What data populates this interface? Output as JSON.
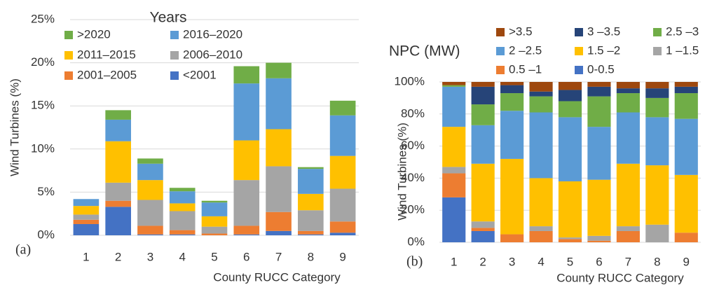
{
  "chart_data": [
    {
      "type": "bar",
      "stacked": true,
      "title": "Years",
      "xlabel": "County RUCC Category",
      "ylabel": "Wind Turbines (%)",
      "annotation": "(a)",
      "categories": [
        "1",
        "2",
        "3",
        "4",
        "5",
        "6",
        "7",
        "8",
        "9"
      ],
      "ylim": [
        0,
        25
      ],
      "yticks": [
        {
          "value": 0,
          "label": "0%"
        },
        {
          "value": 5,
          "label": "5%"
        },
        {
          "value": 10,
          "label": "10%"
        },
        {
          "value": 15,
          "label": "15%"
        },
        {
          "value": 20,
          "label": "20%"
        },
        {
          "value": 25,
          "label": "25%"
        }
      ],
      "grid": true,
      "series": [
        {
          "name": "<2001",
          "color": "#4472c4",
          "values": [
            1.3,
            3.3,
            0.1,
            0.1,
            0,
            0.1,
            0.5,
            0.1,
            0.3
          ]
        },
        {
          "name": "2001–2005",
          "color": "#ed7d31",
          "values": [
            0.5,
            0.7,
            1.0,
            0.5,
            0.2,
            1.0,
            2.2,
            0.4,
            1.3
          ]
        },
        {
          "name": "2006–2010",
          "color": "#a5a5a5",
          "values": [
            0.6,
            2.1,
            3.0,
            2.2,
            0.8,
            5.3,
            5.3,
            2.4,
            3.8
          ]
        },
        {
          "name": "2011–2015",
          "color": "#ffc000",
          "values": [
            1.0,
            4.8,
            2.3,
            0.9,
            1.2,
            4.6,
            4.3,
            1.9,
            3.8
          ]
        },
        {
          "name": "2016–2020",
          "color": "#5b9bd5",
          "values": [
            0.8,
            2.5,
            1.9,
            1.4,
            1.6,
            6.6,
            5.9,
            2.9,
            4.7
          ]
        },
        {
          "name": ">2020",
          "color": "#70ad47",
          "values": [
            0,
            1.1,
            0.6,
            0.4,
            0.2,
            2.0,
            1.8,
            0.2,
            1.7
          ]
        }
      ]
    },
    {
      "type": "bar",
      "stacked": true,
      "title": "NPC (MW)",
      "xlabel": "County RUCC Category",
      "ylabel": "Wind Turbines (%)",
      "annotation": "(b)",
      "categories": [
        "1",
        "2",
        "3",
        "4",
        "5",
        "6",
        "7",
        "8",
        "9"
      ],
      "ylim": [
        0,
        100
      ],
      "yticks": [
        {
          "value": 0,
          "label": "0%"
        },
        {
          "value": 20,
          "label": "20%"
        },
        {
          "value": 40,
          "label": "40%"
        },
        {
          "value": 60,
          "label": "60%"
        },
        {
          "value": 80,
          "label": "80%"
        },
        {
          "value": 100,
          "label": "100%"
        }
      ],
      "grid": true,
      "series": [
        {
          "name": "0-0.5",
          "color": "#4472c4",
          "values": [
            28,
            7,
            0,
            0,
            0,
            0,
            0,
            0,
            0
          ]
        },
        {
          "name": "0.5 –1",
          "color": "#ed7d31",
          "values": [
            15,
            2,
            5,
            7,
            2,
            1,
            7,
            0,
            6
          ]
        },
        {
          "name": "1 –1.5",
          "color": "#a5a5a5",
          "values": [
            4,
            4,
            0,
            3,
            1,
            3,
            3,
            11,
            0
          ]
        },
        {
          "name": "1.5 –2",
          "color": "#ffc000",
          "values": [
            25,
            36,
            47,
            30,
            35,
            35,
            39,
            37,
            36
          ]
        },
        {
          "name": "2 –2.5",
          "color": "#5b9bd5",
          "values": [
            25,
            24,
            30,
            41,
            40,
            33,
            32,
            30,
            35
          ]
        },
        {
          "name": "2.5 –3",
          "color": "#70ad47",
          "values": [
            1,
            13,
            11,
            10,
            10,
            19,
            12,
            12,
            16
          ]
        },
        {
          "name": "3 –3.5",
          "color": "#264478",
          "values": [
            0,
            11,
            5,
            3,
            7,
            6,
            3,
            6,
            4
          ]
        },
        {
          "name": ">3.5",
          "color": "#9e480e",
          "values": [
            2,
            3,
            2,
            6,
            5,
            3,
            4,
            4,
            3
          ]
        }
      ]
    }
  ]
}
